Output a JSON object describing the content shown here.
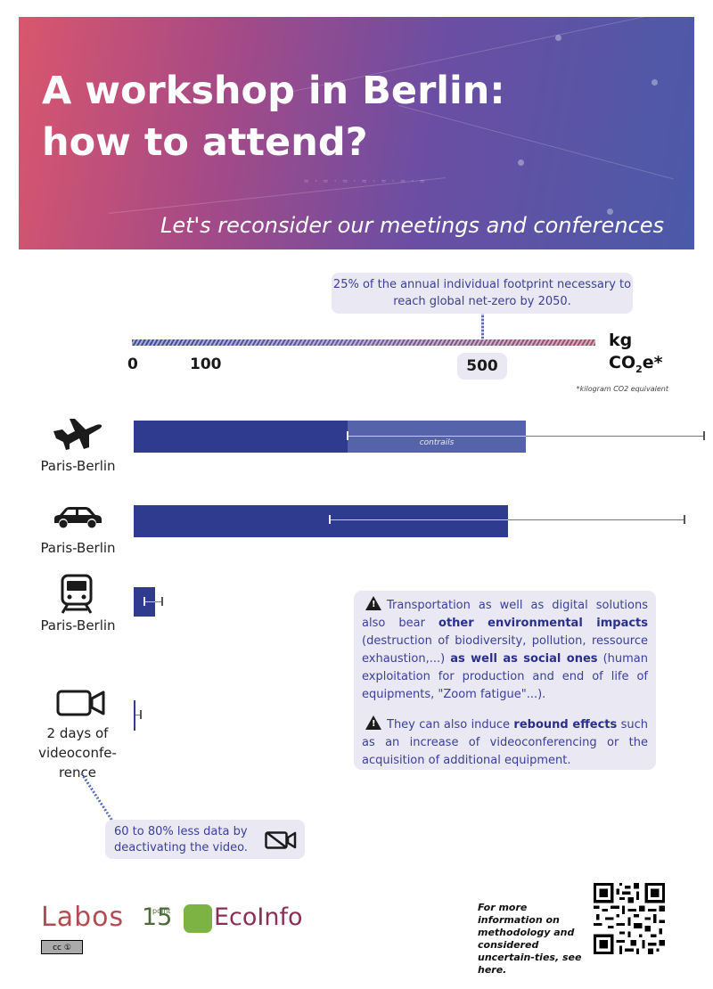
{
  "header": {
    "title_line1": "A workshop in Berlin:",
    "title_line2": "how to attend?",
    "subtitle": "Let's reconsider our meetings and conferences"
  },
  "scale": {
    "callout": "25% of the annual individual footprint necessary to reach global net-zero by 2050.",
    "tick_0": "0",
    "tick_100": "100",
    "tick_500": "500",
    "unit_kg": "kg",
    "unit_co2": "CO",
    "unit_sub": "2",
    "unit_suffix": "e*",
    "unit_note": "*kilogram CO2 equivalent"
  },
  "rows": [
    {
      "label": "Paris-Berlin",
      "icon": "airplane-icon",
      "value_kg": 550,
      "co2_kg": 300,
      "error_min_kg": 300,
      "error_max_kg": 800,
      "segment_label": "contrails"
    },
    {
      "label": "Paris-Berlin",
      "icon": "car-icon",
      "value_kg": 525,
      "error_min_kg": 275,
      "error_max_kg": 772
    },
    {
      "label": "Paris-Berlin",
      "icon": "train-icon",
      "value_kg": 30,
      "error_min_kg": 15,
      "error_max_kg": 40
    },
    {
      "label": "2 days of videoconfe-rence",
      "icon": "video-camera-icon",
      "value_kg": 3,
      "error_max_kg": 10
    }
  ],
  "info": {
    "p1_a": "Transportation as well as digital solutions also bear ",
    "p1_b": "other environmental impacts",
    "p1_c": " (destruction of biodiversity, pollution, ressource exhaustion,...) ",
    "p1_d": "as well as social ones",
    "p1_e": " (human exploitation for production and end of life of equipments, \"Zoom fatigue\"...).",
    "p2_a": "They can also induce ",
    "p2_b": "rebound effects",
    "p2_c": " such as an increase of videoconferencing or the acquisition of additional equipment."
  },
  "data_callout": "60 to 80% less data by deactivating the video.",
  "footer": {
    "logo1": "Labos",
    "logo2": "15",
    "logo2_small": "point",
    "logo3": "EcoInfo",
    "license": "cc ①",
    "more_info": "For more information on methodology and considered uncertain-ties, see here."
  },
  "colors": {
    "bar": "#2f3b8f",
    "contrails": "#5563aa",
    "callout_bg": "#e9e8f3",
    "callout_text": "#3b3f95"
  }
}
